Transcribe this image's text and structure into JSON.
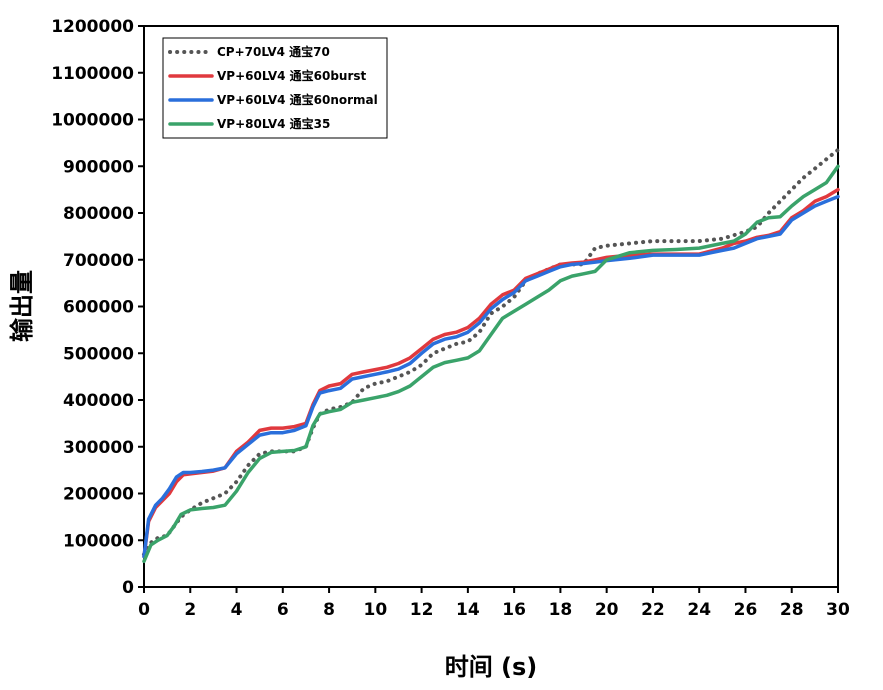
{
  "chart_data": {
    "type": "line",
    "xlabel": "时间 (s)",
    "ylabel": "输出量",
    "xlim": [
      0,
      30
    ],
    "ylim": [
      0,
      1200000
    ],
    "xticks": [
      "0",
      "2",
      "4",
      "6",
      "8",
      "10",
      "12",
      "14",
      "16",
      "18",
      "20",
      "22",
      "24",
      "26",
      "28",
      "30"
    ],
    "yticks": [
      "0",
      "100000",
      "200000",
      "300000",
      "400000",
      "500000",
      "600000",
      "700000",
      "800000",
      "900000",
      "1000000",
      "1100000",
      "1200000"
    ],
    "grid": false,
    "legend_position": "top-left",
    "series": [
      {
        "name": "CP+70LV4 通宝70",
        "color": "#555555",
        "style": "dotted",
        "x": [
          0,
          0.3,
          0.6,
          1.0,
          1.3,
          1.6,
          2.0,
          2.5,
          3.0,
          3.5,
          4.0,
          4.5,
          5.0,
          5.5,
          6.0,
          6.5,
          7.0,
          7.3,
          7.6,
          8.0,
          8.5,
          9.0,
          9.5,
          10.0,
          10.5,
          11.0,
          11.5,
          12.0,
          12.5,
          13.0,
          13.5,
          14.0,
          14.5,
          15.0,
          15.5,
          16.0,
          16.5,
          17.0,
          17.5,
          18.0,
          18.5,
          19.0,
          19.5,
          20.0,
          21.0,
          22.0,
          23.0,
          24.0,
          25.0,
          26.0,
          26.5,
          27.0,
          27.5,
          28.0,
          28.5,
          29.0,
          29.5,
          30.0
        ],
        "values": [
          70000,
          95000,
          105000,
          110000,
          130000,
          150000,
          165000,
          180000,
          190000,
          200000,
          225000,
          260000,
          285000,
          290000,
          290000,
          290000,
          300000,
          340000,
          370000,
          380000,
          385000,
          395000,
          425000,
          435000,
          440000,
          450000,
          460000,
          475000,
          500000,
          510000,
          520000,
          525000,
          545000,
          585000,
          600000,
          620000,
          655000,
          670000,
          680000,
          690000,
          690000,
          690000,
          725000,
          730000,
          735000,
          740000,
          740000,
          740000,
          745000,
          760000,
          770000,
          800000,
          825000,
          850000,
          875000,
          895000,
          915000,
          935000
        ]
      },
      {
        "name": "VP+60LV4 通宝60burst",
        "color": "#e0393e",
        "style": "solid",
        "x": [
          0,
          0.2,
          0.5,
          0.8,
          1.1,
          1.4,
          1.7,
          2.0,
          2.5,
          3.0,
          3.5,
          4.0,
          4.5,
          5.0,
          5.5,
          6.0,
          6.5,
          7.0,
          7.3,
          7.6,
          8.0,
          8.5,
          9.0,
          9.5,
          10.0,
          10.5,
          11.0,
          11.5,
          12.0,
          12.5,
          13.0,
          13.5,
          14.0,
          14.5,
          15.0,
          15.5,
          16.0,
          16.5,
          17.0,
          17.5,
          18.0,
          18.5,
          19.0,
          19.5,
          20.0,
          21.0,
          22.0,
          23.0,
          24.0,
          25.0,
          25.5,
          26.0,
          26.5,
          27.0,
          27.5,
          28.0,
          28.5,
          29.0,
          29.5,
          30.0
        ],
        "values": [
          65000,
          140000,
          170000,
          185000,
          200000,
          225000,
          240000,
          242000,
          245000,
          248000,
          255000,
          290000,
          310000,
          335000,
          340000,
          340000,
          343000,
          350000,
          390000,
          420000,
          430000,
          435000,
          455000,
          460000,
          465000,
          470000,
          478000,
          490000,
          510000,
          530000,
          540000,
          545000,
          555000,
          575000,
          605000,
          625000,
          635000,
          660000,
          670000,
          680000,
          690000,
          693000,
          695000,
          700000,
          705000,
          710000,
          712000,
          712000,
          712000,
          725000,
          735000,
          740000,
          748000,
          752000,
          760000,
          790000,
          805000,
          825000,
          835000,
          850000
        ]
      },
      {
        "name": "VP+60LV4 通宝60normal",
        "color": "#2a6fdb",
        "style": "solid",
        "x": [
          0,
          0.2,
          0.5,
          0.8,
          1.1,
          1.4,
          1.7,
          2.0,
          2.5,
          3.0,
          3.5,
          4.0,
          4.5,
          5.0,
          5.5,
          6.0,
          6.5,
          7.0,
          7.3,
          7.6,
          8.0,
          8.5,
          9.0,
          9.5,
          10.0,
          10.5,
          11.0,
          11.5,
          12.0,
          12.5,
          13.0,
          13.5,
          14.0,
          14.5,
          15.0,
          15.5,
          16.0,
          16.5,
          17.0,
          17.5,
          18.0,
          18.5,
          19.0,
          19.5,
          20.0,
          21.0,
          22.0,
          23.0,
          24.0,
          25.0,
          25.5,
          26.0,
          26.5,
          27.0,
          27.5,
          28.0,
          28.5,
          29.0,
          29.5,
          30.0
        ],
        "values": [
          65000,
          145000,
          175000,
          190000,
          210000,
          235000,
          245000,
          245000,
          247000,
          250000,
          255000,
          285000,
          305000,
          325000,
          330000,
          330000,
          335000,
          345000,
          385000,
          415000,
          420000,
          425000,
          445000,
          450000,
          455000,
          460000,
          466000,
          478000,
          500000,
          520000,
          530000,
          535000,
          545000,
          565000,
          595000,
          615000,
          630000,
          655000,
          665000,
          675000,
          685000,
          690000,
          692000,
          695000,
          698000,
          703000,
          710000,
          710000,
          710000,
          720000,
          725000,
          735000,
          745000,
          750000,
          755000,
          785000,
          800000,
          815000,
          825000,
          835000
        ]
      },
      {
        "name": "VP+80LV4 通宝35",
        "color": "#3aa36a",
        "style": "solid",
        "x": [
          0,
          0.3,
          0.6,
          1.0,
          1.3,
          1.6,
          2.0,
          2.5,
          3.0,
          3.5,
          4.0,
          4.5,
          5.0,
          5.5,
          6.0,
          6.5,
          7.0,
          7.3,
          7.6,
          8.0,
          8.5,
          9.0,
          9.5,
          10.0,
          10.5,
          11.0,
          11.5,
          12.0,
          12.5,
          13.0,
          13.5,
          14.0,
          14.5,
          15.0,
          15.5,
          16.0,
          16.5,
          17.0,
          17.5,
          18.0,
          18.5,
          19.0,
          19.5,
          20.0,
          21.0,
          22.0,
          23.0,
          24.0,
          25.0,
          25.5,
          26.0,
          26.5,
          27.0,
          27.5,
          28.0,
          28.5,
          29.0,
          29.5,
          30.0
        ],
        "values": [
          55000,
          90000,
          100000,
          110000,
          130000,
          155000,
          165000,
          168000,
          170000,
          175000,
          205000,
          245000,
          275000,
          288000,
          290000,
          292000,
          300000,
          345000,
          370000,
          375000,
          380000,
          395000,
          400000,
          405000,
          410000,
          418000,
          430000,
          450000,
          470000,
          480000,
          485000,
          490000,
          505000,
          540000,
          575000,
          590000,
          605000,
          620000,
          635000,
          655000,
          665000,
          670000,
          675000,
          700000,
          715000,
          720000,
          722000,
          725000,
          735000,
          740000,
          755000,
          780000,
          790000,
          792000,
          815000,
          835000,
          850000,
          865000,
          900000
        ]
      }
    ]
  }
}
